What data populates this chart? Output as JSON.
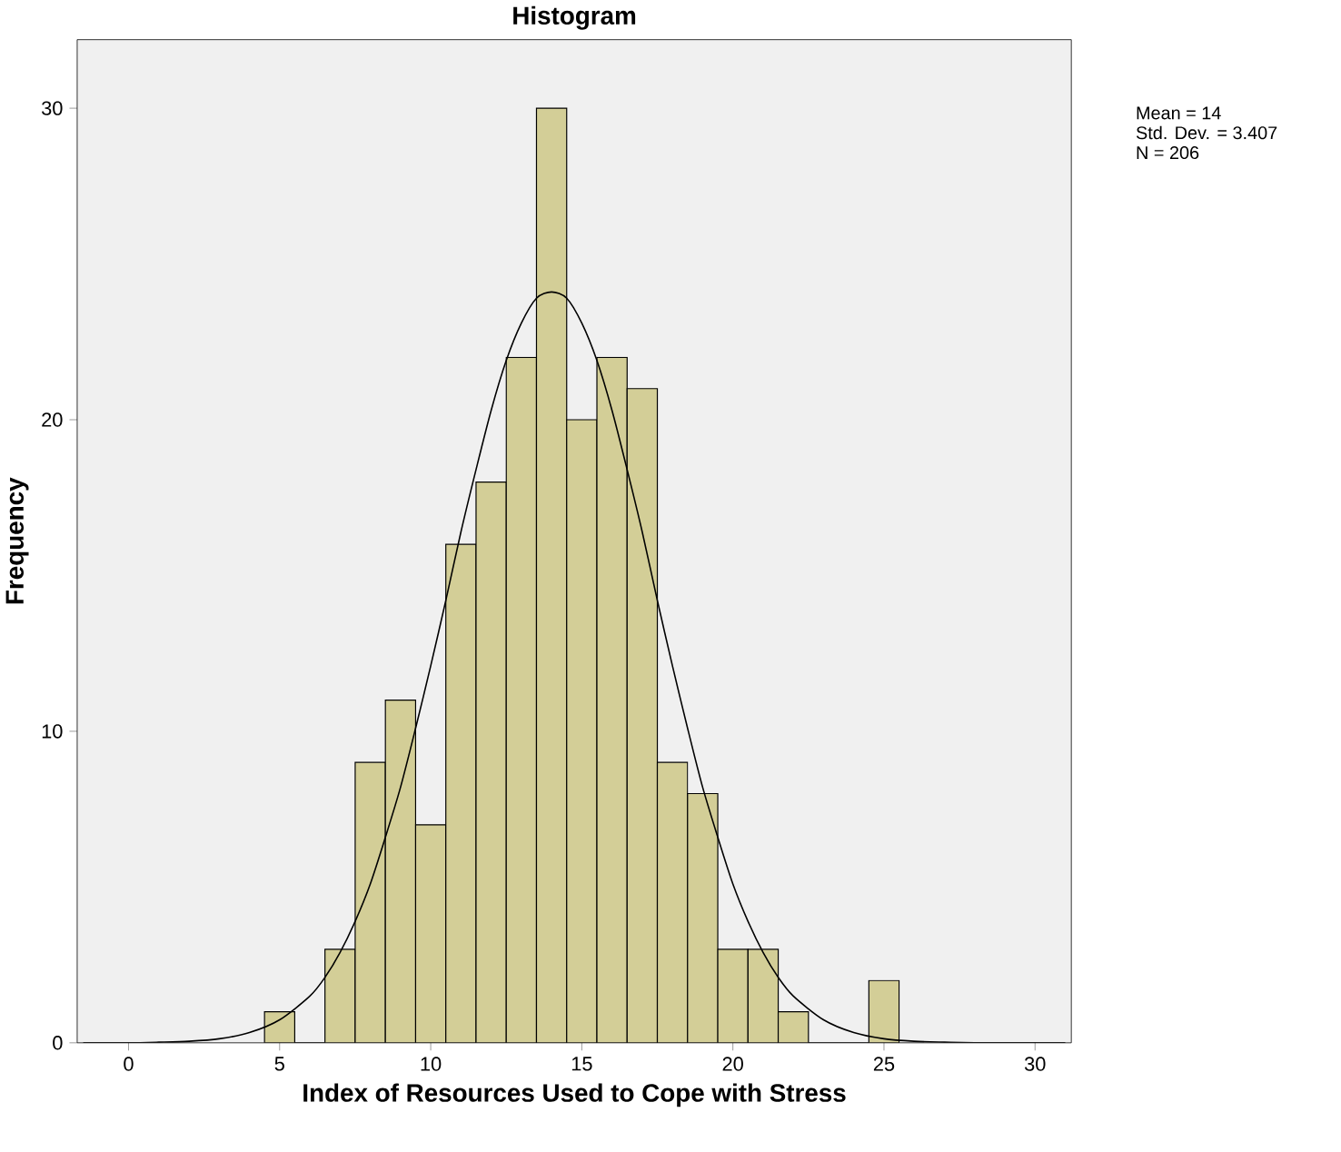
{
  "chart_data": {
    "type": "histogram",
    "title": "Histogram",
    "xlabel": "Index of Resources Used to Cope with Stress",
    "ylabel": "Frequency",
    "bins": [
      4.5,
      5.5,
      6.5,
      7.5,
      8.5,
      9.5,
      10.5,
      11.5,
      12.5,
      13.5,
      14.5,
      15.5,
      16.5,
      17.5,
      18.5,
      19.5,
      20.5,
      21.5,
      22.5,
      23.5,
      24.5,
      25.5
    ],
    "values": [
      1,
      0,
      3,
      9,
      11,
      7,
      16,
      18,
      22,
      30,
      20,
      22,
      21,
      9,
      8,
      3,
      3,
      1,
      0,
      0,
      2
    ],
    "color": "#d3ce97",
    "series": [
      {
        "type": "line",
        "color": "#000000",
        "x": [
          -1.5,
          0,
          1,
          2,
          3,
          4,
          5,
          6,
          6.5,
          7,
          7.5,
          8,
          8.5,
          9,
          9.5,
          10,
          10.5,
          11,
          11.5,
          12,
          12.5,
          13,
          13.5,
          14,
          14.5,
          15,
          15.5,
          16,
          16.5,
          17,
          17.5,
          18,
          18.5,
          19,
          19.5,
          20,
          20.5,
          21,
          21.5,
          22,
          23,
          24,
          25,
          26,
          27,
          28,
          31
        ],
        "values": [
          0,
          0,
          0.02,
          0.05,
          0.13,
          0.33,
          0.74,
          1.5,
          2.1,
          2.9,
          3.9,
          5.1,
          6.6,
          8.2,
          10.1,
          12.1,
          14.2,
          16.4,
          18.4,
          20.3,
          21.9,
          23.1,
          23.9,
          24.1,
          23.9,
          23.1,
          21.9,
          20.3,
          18.4,
          16.4,
          14.2,
          12.1,
          10.1,
          8.2,
          6.6,
          5.1,
          3.9,
          2.9,
          2.1,
          1.5,
          0.74,
          0.33,
          0.13,
          0.05,
          0.02,
          0,
          0
        ]
      }
    ],
    "xlim": [
      -1.7,
      31.2
    ],
    "ylim": [
      0,
      32.2
    ],
    "xticks": [
      0,
      5,
      10,
      15,
      20,
      25,
      30
    ],
    "yticks": [
      0,
      10,
      20,
      30
    ],
    "annotations": [
      "Mean = 14",
      "Std. Dev. = 3.407",
      "N = 206"
    ]
  }
}
